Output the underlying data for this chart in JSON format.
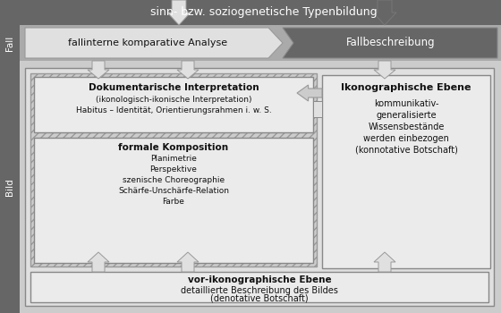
{
  "bg_color": "#e8e8e8",
  "dark_gray": "#666666",
  "medium_gray": "#aaaaaa",
  "light_gray": "#cccccc",
  "lighter_gray": "#e0e0e0",
  "box_fill": "#ebebeb",
  "white": "#ffffff",
  "text_dark": "#111111",
  "top_bar_text": "sinn- bzw. soziogenetische Typenbildung",
  "fall_label": "Fall",
  "bild_label": "Bild",
  "fall_left_text": "fallinterne komparative Analyse",
  "fall_right_text": "Fallbeschreibung",
  "dok_title": "Dokumentarische Interpretation",
  "dok_line1": "(ikonologisch-ikonische Interpretation)",
  "dok_line2": "Habitus – Identität, Orientierungsrahmen i. w. S.",
  "formal_title": "formale Komposition",
  "formal_items": [
    "Planimetrie",
    "Perspektive",
    "szenische Choreographie",
    "Schärfe-Unschärfe-Relation",
    "Farbe"
  ],
  "ikono_title": "Ikonographische Ebene",
  "ikono_lines": [
    "kommunikativ-",
    "generalisierte",
    "Wissensbestände",
    "werden einbezogen",
    "(konnotative Botschaft)"
  ],
  "vor_title": "vor-ikonographische Ebene",
  "vor_line1": "detaillierte Beschreibung des Bildes",
  "vor_line2": "(denotative Botschaft)"
}
